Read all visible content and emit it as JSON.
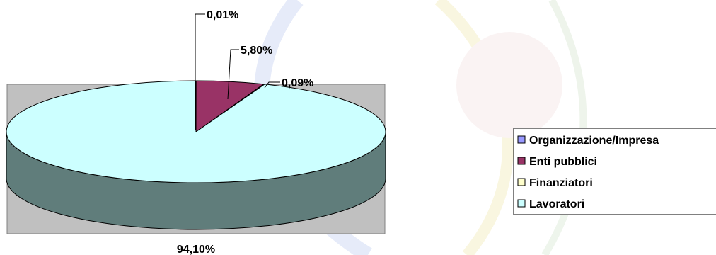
{
  "chart_data": {
    "type": "pie",
    "style": "3d",
    "slices": [
      {
        "name": "Organizzazione/Impresa",
        "value": 0.01,
        "label": "0,01%",
        "color": "#9999ff"
      },
      {
        "name": "Enti pubblici",
        "value": 5.8,
        "label": "5,80%",
        "color": "#993366"
      },
      {
        "name": "Finanziatori",
        "value": 0.09,
        "label": "0,09%",
        "color": "#ffffcc"
      },
      {
        "name": "Lavoratori",
        "value": 94.1,
        "label": "94,10%",
        "color": "#ccffff"
      }
    ],
    "side_color": "#607d7b",
    "plot_area_color": "#c0c0c0",
    "legend_position": "right"
  }
}
